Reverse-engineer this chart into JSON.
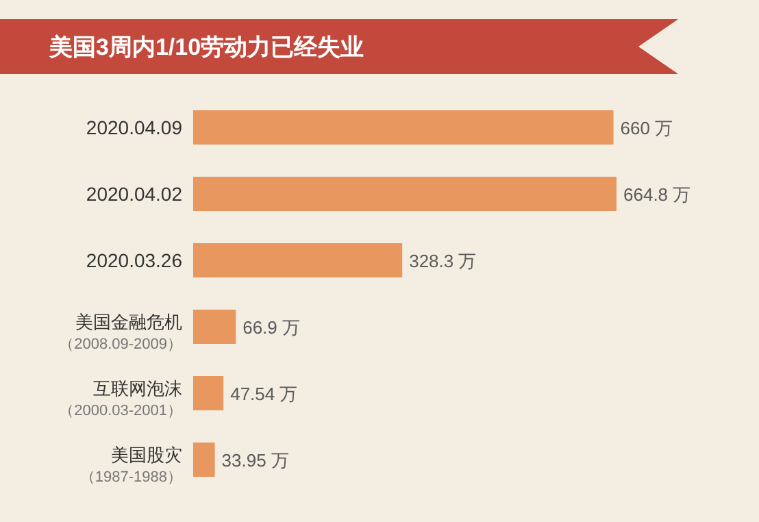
{
  "chart_data": {
    "type": "bar",
    "orientation": "horizontal",
    "title": "美国3周内1/10劳动力已经失业",
    "categories": [
      "2020.04.09",
      "2020.04.02",
      "2020.03.26",
      "美国金融危机（2008.09-2009）",
      "互联网泡沫（2000.03-2001）",
      "美国股灾（1987-1988）"
    ],
    "values": [
      660,
      664.8,
      328.3,
      66.9,
      47.54,
      33.95
    ],
    "value_labels": [
      "660 万",
      "664.8 万",
      "328.3 万",
      "66.9 万",
      "47.54 万",
      "33.95 万"
    ],
    "color": "#e8975e"
  }
}
